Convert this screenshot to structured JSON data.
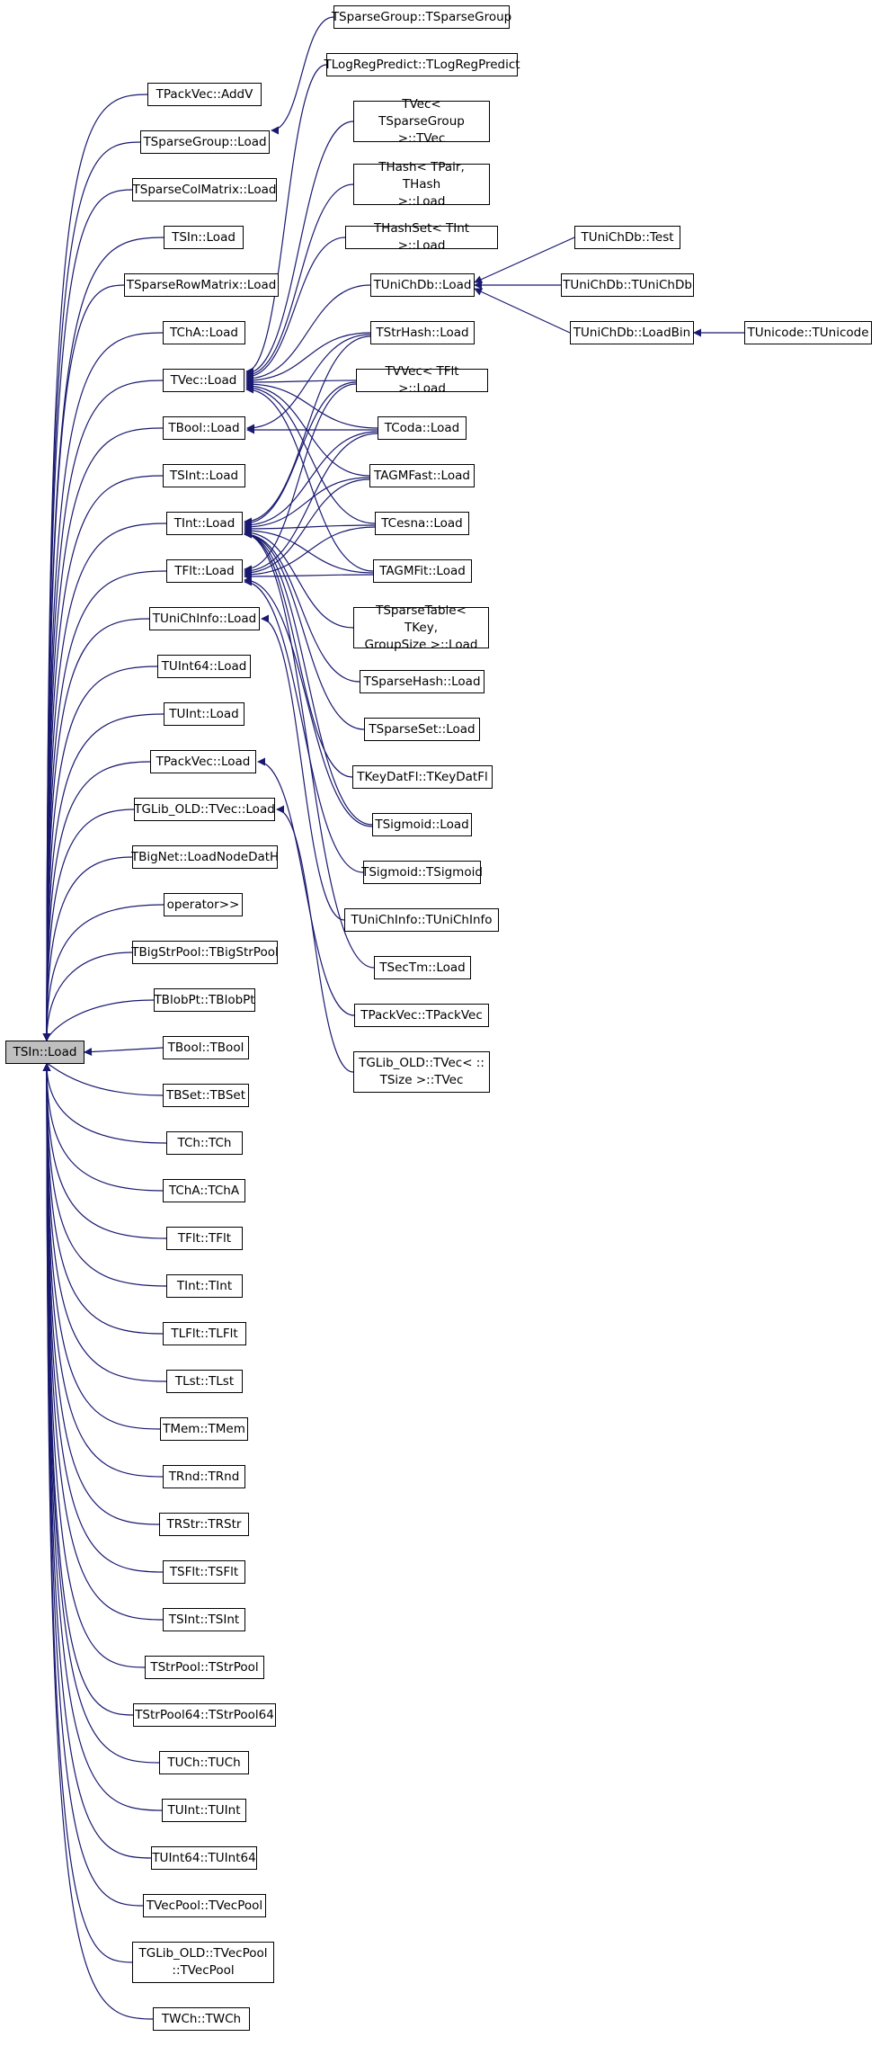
{
  "root": "TSIn::Load",
  "colors": {
    "edge": "#191970",
    "border": "#000000",
    "root_fill": "#bfbfbf",
    "node_fill": "#ffffff"
  },
  "nodes": {
    "n_root": "TSIn::Load",
    "n_addv": "TPackVec::AddV",
    "n_tsg_load": "TSparseGroup::Load",
    "n_tscm_load": "TSparseColMatrix::Load",
    "n_tsin_load2": "TSIn::Load",
    "n_tsrm_load": "TSparseRowMatrix::Load",
    "n_tcha_load": "TChA::Load",
    "n_tvec_load": "TVec::Load",
    "n_tbool_load": "TBool::Load",
    "n_tsint_load": "TSInt::Load",
    "n_tint_load": "TInt::Load",
    "n_tflt_load": "TFlt::Load",
    "n_tucinfo_load": "TUniChInfo::Load",
    "n_tuint64_load": "TUInt64::Load",
    "n_tuint_load": "TUInt::Load",
    "n_tpackvec_load": "TPackVec::Load",
    "n_tglib_tvec_load": "TGLib_OLD::TVec::Load",
    "n_tbignet": "TBigNet::LoadNodeDatH",
    "n_operator": "operator>>",
    "n_tbigstrpool": "TBigStrPool::TBigStrPool",
    "n_tblobpt": "TBlobPt::TBlobPt",
    "n_tbool_tbool": "TBool::TBool",
    "n_tbset": "TBSet::TBSet",
    "n_tch": "TCh::TCh",
    "n_tcha": "TChA::TChA",
    "n_tflt_tflt": "TFlt::TFlt",
    "n_tint_tint": "TInt::TInt",
    "n_tlflt": "TLFlt::TLFlt",
    "n_tlst": "TLst::TLst",
    "n_tmem": "TMem::TMem",
    "n_trnd": "TRnd::TRnd",
    "n_trstr": "TRStr::TRStr",
    "n_tsflt": "TSFlt::TSFlt",
    "n_tsint_tsint": "TSInt::TSInt",
    "n_tstrpool": "TStrPool::TStrPool",
    "n_tstrpool64": "TStrPool64::TStrPool64",
    "n_tuch": "TUCh::TUCh",
    "n_tuint_tuint": "TUInt::TUInt",
    "n_tuint64_tuint64": "TUInt64::TUInt64",
    "n_tvecpool": "TVecPool::TVecPool",
    "n_tglib_tvecpool": "TGLib_OLD::TVecPool\n::TVecPool",
    "n_twch": "TWCh::TWCh",
    "n_tsg_tsg": "TSparseGroup::TSparseGroup",
    "n_tlogreg": "TLogRegPredict::TLogRegPredict",
    "n_tvec_tsg": "TVec< TSparseGroup\n >::TVec",
    "n_thash_pair": "THash< TPair, THash\n >::Load",
    "n_thashset": "THashSet< TInt >::Load",
    "n_tunichdb_load": "TUniChDb::Load",
    "n_tstrhash": "TStrHash::Load",
    "n_tvvec": "TVVec< TFlt >::Load",
    "n_tcoda": "TCoda::Load",
    "n_tagmfast": "TAGMFast::Load",
    "n_tcesna": "TCesna::Load",
    "n_tagmfit": "TAGMFit::Load",
    "n_tsparsetable": "TSparseTable< TKey,\n GroupSize >::Load",
    "n_tsparsehash": "TSparseHash::Load",
    "n_tsparseset": "TSparseSet::Load",
    "n_tkeydatfl": "TKeyDatFl::TKeyDatFl",
    "n_tsigmoid_load": "TSigmoid::Load",
    "n_tsigmoid_tsigmoid": "TSigmoid::TSigmoid",
    "n_tucinfo_tucinfo": "TUniChInfo::TUniChInfo",
    "n_tsectm": "TSecTm::Load",
    "n_tpackvec_tpackvec": "TPackVec::TPackVec",
    "n_tglib_tvec_tvec": "TGLib_OLD::TVec< ::\n TSize >::TVec",
    "n_tunichdb_test": "TUniChDb::Test",
    "n_tunichdb_tunichdb": "TUniChDb::TUniChDb",
    "n_tunichdb_loadbin": "TUniChDb::LoadBin",
    "n_tunicode": "TUnicode::TUnicode"
  }
}
